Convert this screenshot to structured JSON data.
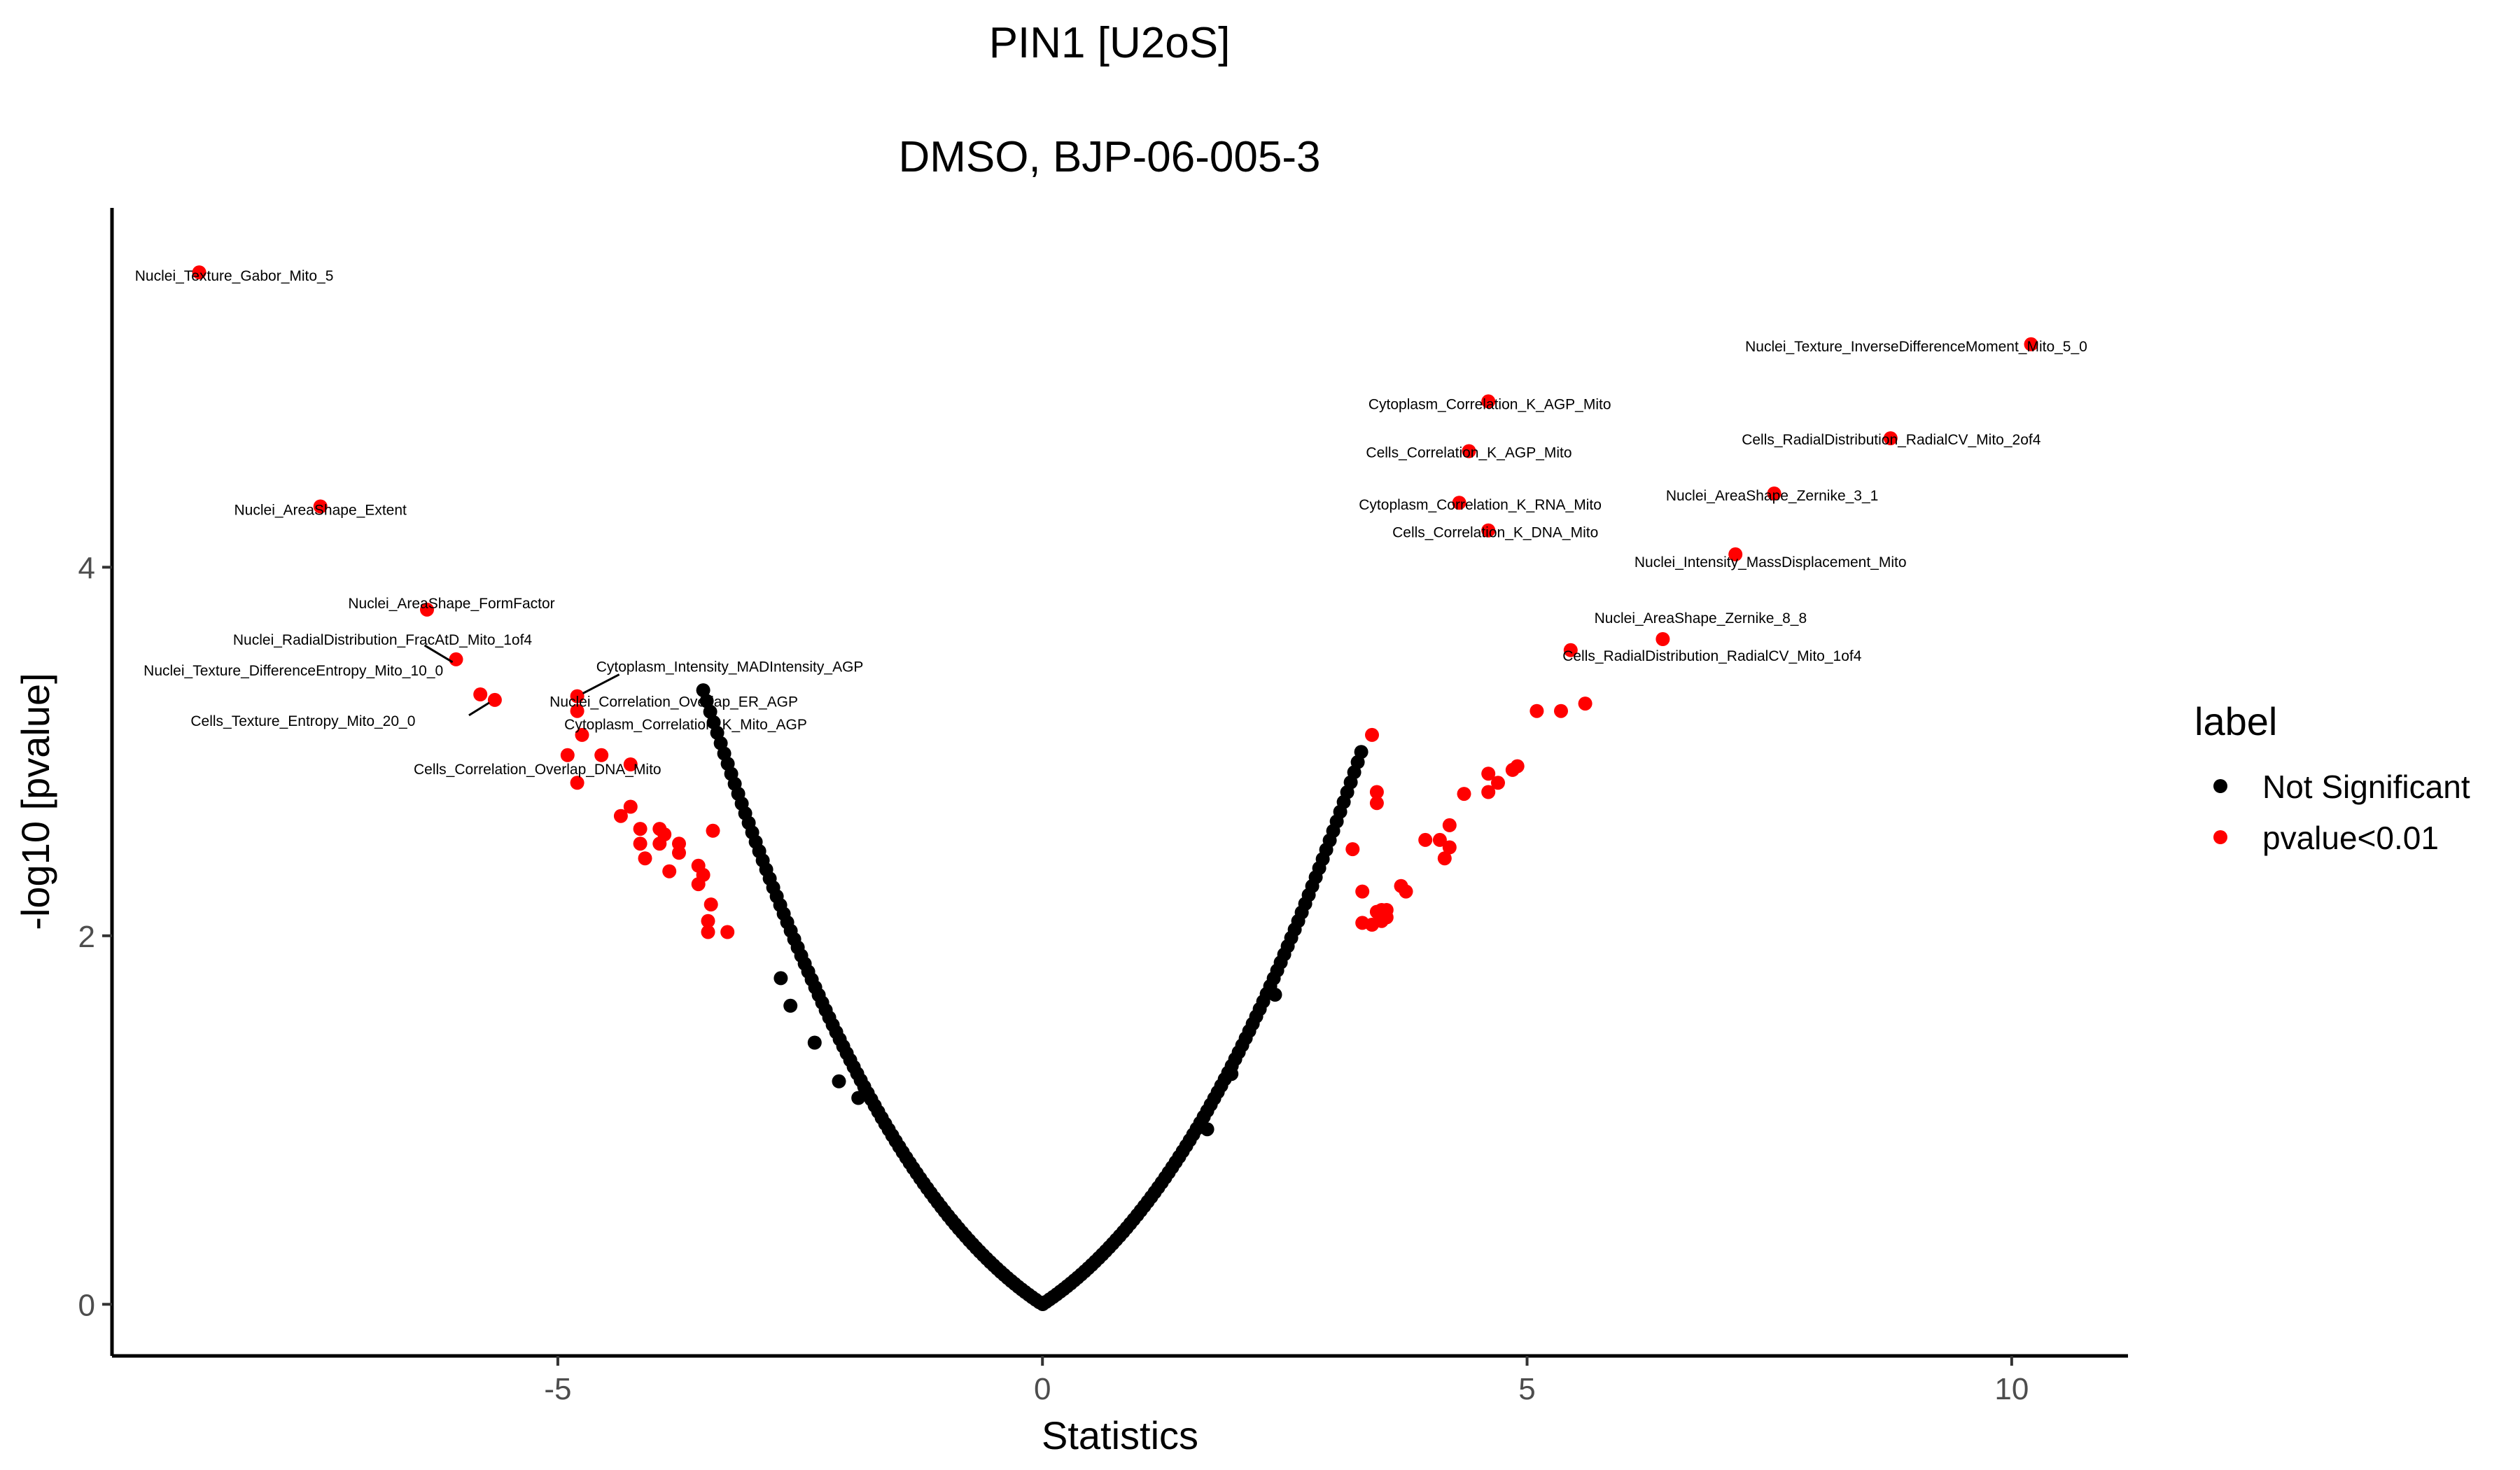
{
  "chart_data": {
    "type": "scatter",
    "title": "PIN1 [U2oS]",
    "subtitle": "DMSO, BJP-06-005-3",
    "xlabel": "Statistics",
    "ylabel": "-log10 [pvalue]",
    "xlim": [
      -9.6,
      11.2
    ],
    "ylim": [
      -0.28,
      5.95
    ],
    "x_ticks": [
      -5,
      0,
      5,
      10
    ],
    "x_tick_labels": [
      "-5",
      "0",
      "5",
      "10"
    ],
    "y_ticks": [
      0,
      2,
      4
    ],
    "y_tick_labels": [
      "0",
      "2",
      "4"
    ],
    "grid": false,
    "legend": {
      "title": "label",
      "position": "right",
      "entries": [
        {
          "name": "Not Significant",
          "color": "#000000"
        },
        {
          "name": "pvalue<0.01",
          "color": "#ff0000"
        }
      ]
    },
    "series": [
      {
        "name": "pvalue<0.01",
        "color": "#ff0000",
        "points": [
          {
            "x": -8.7,
            "y": 5.6,
            "label": "Nuclei_Texture_Gabor_Mito_5"
          },
          {
            "x": -7.45,
            "y": 4.33,
            "label": "Nuclei_AreaShape_Extent"
          },
          {
            "x": -6.35,
            "y": 3.77,
            "label": "Nuclei_AreaShape_FormFactor"
          },
          {
            "x": -6.05,
            "y": 3.5,
            "label": "Nuclei_RadialDistribution_FracAtD_Mito_1of4"
          },
          {
            "x": -5.8,
            "y": 3.31,
            "label": "Nuclei_Texture_DifferenceEntropy_Mito_10_0"
          },
          {
            "x": -5.65,
            "y": 3.28,
            "label": "Cells_Texture_Entropy_Mito_20_0"
          },
          {
            "x": -4.8,
            "y": 3.3,
            "label": "Cytoplasm_Intensity_MADIntensity_AGP"
          },
          {
            "x": -4.8,
            "y": 3.22,
            "label": "Nuclei_Correlation_Overlap_ER_AGP"
          },
          {
            "x": -4.75,
            "y": 3.09,
            "label": "Cytoplasm_Correlation_K_Mito_AGP"
          },
          {
            "x": -4.25,
            "y": 2.93,
            "label": "Cells_Correlation_Overlap_DNA_Mito"
          },
          {
            "x": -4.9,
            "y": 2.98
          },
          {
            "x": -4.55,
            "y": 2.98
          },
          {
            "x": -4.8,
            "y": 2.83
          },
          {
            "x": -4.35,
            "y": 2.65
          },
          {
            "x": -4.25,
            "y": 2.7
          },
          {
            "x": -4.15,
            "y": 2.58
          },
          {
            "x": -3.95,
            "y": 2.58
          },
          {
            "x": -3.9,
            "y": 2.55
          },
          {
            "x": -4.15,
            "y": 2.5
          },
          {
            "x": -3.95,
            "y": 2.5
          },
          {
            "x": -4.1,
            "y": 2.42
          },
          {
            "x": -3.75,
            "y": 2.5
          },
          {
            "x": -3.75,
            "y": 2.45
          },
          {
            "x": -3.55,
            "y": 2.38
          },
          {
            "x": -3.5,
            "y": 2.33
          },
          {
            "x": -3.85,
            "y": 2.35
          },
          {
            "x": -3.55,
            "y": 2.28
          },
          {
            "x": -3.4,
            "y": 2.57
          },
          {
            "x": -3.42,
            "y": 2.17
          },
          {
            "x": -3.45,
            "y": 2.08
          },
          {
            "x": -3.25,
            "y": 2.02
          },
          {
            "x": -3.45,
            "y": 2.02
          },
          {
            "x": 10.2,
            "y": 5.21,
            "label": "Nuclei_Texture_InverseDifferenceMoment_Mito_5_0"
          },
          {
            "x": 4.6,
            "y": 4.9,
            "label": "Cytoplasm_Correlation_K_AGP_Mito"
          },
          {
            "x": 8.75,
            "y": 4.7,
            "label": "Cells_RadialDistribution_RadialCV_Mito_2of4"
          },
          {
            "x": 4.4,
            "y": 4.63,
            "label": "Cells_Correlation_K_AGP_Mito"
          },
          {
            "x": 7.55,
            "y": 4.4,
            "label": "Nuclei_AreaShape_Zernike_3_1"
          },
          {
            "x": 4.3,
            "y": 4.35,
            "label": "Cytoplasm_Correlation_K_RNA_Mito"
          },
          {
            "x": 4.6,
            "y": 4.2,
            "label": "Cells_Correlation_K_DNA_Mito"
          },
          {
            "x": 7.15,
            "y": 4.07,
            "label": "Nuclei_Intensity_MassDisplacement_Mito"
          },
          {
            "x": 6.4,
            "y": 3.61,
            "label": "Nuclei_AreaShape_Zernike_8_8"
          },
          {
            "x": 5.45,
            "y": 3.55,
            "label": "Cells_RadialDistribution_RadialCV_Mito_1of4"
          },
          {
            "x": 5.1,
            "y": 3.22
          },
          {
            "x": 5.35,
            "y": 3.22
          },
          {
            "x": 5.6,
            "y": 3.26
          },
          {
            "x": 3.4,
            "y": 3.09
          },
          {
            "x": 3.45,
            "y": 2.78
          },
          {
            "x": 3.45,
            "y": 2.72
          },
          {
            "x": 4.85,
            "y": 2.9
          },
          {
            "x": 4.9,
            "y": 2.92
          },
          {
            "x": 4.6,
            "y": 2.88
          },
          {
            "x": 4.7,
            "y": 2.83
          },
          {
            "x": 4.6,
            "y": 2.78
          },
          {
            "x": 4.35,
            "y": 2.77
          },
          {
            "x": 3.2,
            "y": 2.47
          },
          {
            "x": 3.95,
            "y": 2.52
          },
          {
            "x": 4.1,
            "y": 2.52
          },
          {
            "x": 4.2,
            "y": 2.6
          },
          {
            "x": 4.2,
            "y": 2.48
          },
          {
            "x": 4.15,
            "y": 2.42
          },
          {
            "x": 3.3,
            "y": 2.24
          },
          {
            "x": 3.7,
            "y": 2.27
          },
          {
            "x": 3.75,
            "y": 2.24
          },
          {
            "x": 3.45,
            "y": 2.13
          },
          {
            "x": 3.5,
            "y": 2.14
          },
          {
            "x": 3.55,
            "y": 2.14
          },
          {
            "x": 3.55,
            "y": 2.1
          },
          {
            "x": 3.5,
            "y": 2.08
          },
          {
            "x": 3.3,
            "y": 2.07
          },
          {
            "x": 3.4,
            "y": 2.06
          }
        ]
      },
      {
        "name": "Not Significant",
        "color": "#000000",
        "curve": "y = -log10(2 * (1 - Phi(|x|)))",
        "x_range": [
          -3.5,
          3.3
        ],
        "extra_points": [
          {
            "x": 2.4,
            "y": 1.68
          },
          {
            "x": 1.95,
            "y": 1.25
          },
          {
            "x": 1.7,
            "y": 0.95
          },
          {
            "x": -2.7,
            "y": 1.77
          },
          {
            "x": -2.6,
            "y": 1.62
          },
          {
            "x": -2.35,
            "y": 1.42
          },
          {
            "x": -2.1,
            "y": 1.21
          },
          {
            "x": -1.9,
            "y": 1.12
          }
        ]
      }
    ],
    "annotations": [
      {
        "text": "Nuclei_Texture_Gabor_Mito_5",
        "x": -8.7,
        "y": 5.6
      },
      {
        "text": "Nuclei_AreaShape_Extent",
        "x": -7.45,
        "y": 4.33
      },
      {
        "text": "Nuclei_AreaShape_FormFactor",
        "x": -6.35,
        "y": 3.77
      },
      {
        "text": "Nuclei_RadialDistribution_FracAtD_Mito_1of4",
        "x": -6.05,
        "y": 3.5
      },
      {
        "text": "Nuclei_Texture_DifferenceEntropy_Mito_10_0",
        "x": -5.8,
        "y": 3.31
      },
      {
        "text": "Cells_Texture_Entropy_Mito_20_0",
        "x": -5.65,
        "y": 3.28
      },
      {
        "text": "Cytoplasm_Intensity_MADIntensity_AGP",
        "x": -4.8,
        "y": 3.3
      },
      {
        "text": "Nuclei_Correlation_Overlap_ER_AGP",
        "x": -4.8,
        "y": 3.22
      },
      {
        "text": "Cytoplasm_Correlation_K_Mito_AGP",
        "x": -4.75,
        "y": 3.09
      },
      {
        "text": "Cells_Correlation_Overlap_DNA_Mito",
        "x": -4.25,
        "y": 2.93
      },
      {
        "text": "Nuclei_Texture_InverseDifferenceMoment_Mito_5_0",
        "x": 10.2,
        "y": 5.21
      },
      {
        "text": "Cytoplasm_Correlation_K_AGP_Mito",
        "x": 4.6,
        "y": 4.9
      },
      {
        "text": "Cells_RadialDistribution_RadialCV_Mito_2of4",
        "x": 8.75,
        "y": 4.7
      },
      {
        "text": "Cells_Correlation_K_AGP_Mito",
        "x": 4.4,
        "y": 4.63
      },
      {
        "text": "Nuclei_AreaShape_Zernike_3_1",
        "x": 7.55,
        "y": 4.4
      },
      {
        "text": "Cytoplasm_Correlation_K_RNA_Mito",
        "x": 4.3,
        "y": 4.35
      },
      {
        "text": "Cells_Correlation_K_DNA_Mito",
        "x": 4.6,
        "y": 4.2
      },
      {
        "text": "Nuclei_Intensity_MassDisplacement_Mito",
        "x": 7.15,
        "y": 4.07
      },
      {
        "text": "Nuclei_AreaShape_Zernike_8_8",
        "x": 6.4,
        "y": 3.61
      },
      {
        "text": "Cells_RadialDistribution_RadialCV_Mito_1of4",
        "x": 5.45,
        "y": 3.55
      }
    ]
  }
}
